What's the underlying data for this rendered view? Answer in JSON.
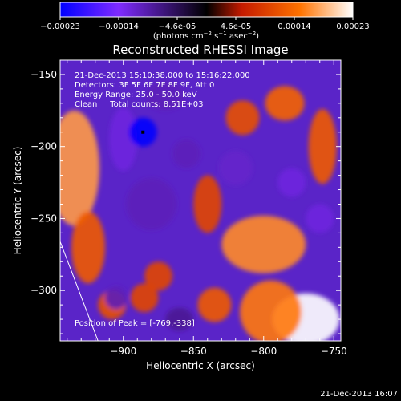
{
  "chart_data": {
    "type": "heatmap",
    "title": "Reconstructed RHESSI Image",
    "xlabel": "Heliocentric X (arcsec)",
    "ylabel": "Heliocentric Y (arcsec)",
    "xlim": [
      -945,
      -745
    ],
    "ylim": [
      -335,
      -140
    ],
    "x_ticks": [
      -900,
      -850,
      -800,
      -750
    ],
    "y_ticks": [
      -150,
      -200,
      -250,
      -300
    ],
    "colorbar": {
      "ticks": [
        "-0.00023",
        "-0.00014",
        "-4.6e-05",
        "4.6e-05",
        "0.00014",
        "0.00023"
      ],
      "label": "(photons cm^-2 s^-1 asec^-2)",
      "range": [
        -0.00023,
        0.00023
      ],
      "colors": [
        "#0000ff",
        "#7f2bff",
        "#000000",
        "#c41a00",
        "#ff7300",
        "#ffffff"
      ]
    },
    "annotations": [
      "21-Dec-2013 15:10:38.000 to 15:16:22.000",
      "Detectors: 3F 5F 6F 7F 8F 9F, Att 0",
      "Energy Range: 25.0 - 50.0 keV",
      "Clean     Total counts: 8.51E+03"
    ],
    "peak_label": "Position of Peak = [-769,-338]",
    "peak": [
      -769,
      -338
    ],
    "marker": [
      -886,
      -190
    ],
    "limb_line": [
      [
        -945,
        -266
      ],
      [
        -918,
        -335
      ]
    ],
    "blobs": [
      {
        "x": -935,
        "y": -215,
        "rx": 18,
        "ry": 40,
        "v": 0.00017
      },
      {
        "x": -925,
        "y": -270,
        "rx": 12,
        "ry": 25,
        "v": 0.00012
      },
      {
        "x": -908,
        "y": -310,
        "rx": 10,
        "ry": 10,
        "v": 0.00011
      },
      {
        "x": -885,
        "y": -305,
        "rx": 10,
        "ry": 10,
        "v": 0.0001
      },
      {
        "x": -875,
        "y": -290,
        "rx": 10,
        "ry": 10,
        "v": 0.0001
      },
      {
        "x": -840,
        "y": -240,
        "rx": 10,
        "ry": 20,
        "v": 0.0001
      },
      {
        "x": -815,
        "y": -180,
        "rx": 12,
        "ry": 12,
        "v": 0.00011
      },
      {
        "x": -785,
        "y": -170,
        "rx": 14,
        "ry": 12,
        "v": 0.00013
      },
      {
        "x": -758,
        "y": -200,
        "rx": 10,
        "ry": 26,
        "v": 0.00012
      },
      {
        "x": -800,
        "y": -268,
        "rx": 30,
        "ry": 20,
        "v": 0.00016
      },
      {
        "x": -770,
        "y": -320,
        "rx": 24,
        "ry": 18,
        "v": 0.00023
      },
      {
        "x": -795,
        "y": -315,
        "rx": 22,
        "ry": 22,
        "v": 0.00015
      },
      {
        "x": -835,
        "y": -310,
        "rx": 12,
        "ry": 12,
        "v": 0.00012
      },
      {
        "x": -900,
        "y": -195,
        "rx": 10,
        "ry": 22,
        "v": -0.00012
      },
      {
        "x": -886,
        "y": -190,
        "rx": 10,
        "ry": 10,
        "v": -0.00023
      },
      {
        "x": -880,
        "y": -240,
        "rx": 18,
        "ry": 18,
        "v": -0.0001
      },
      {
        "x": -870,
        "y": -165,
        "rx": 14,
        "ry": 10,
        "v": -0.0001
      },
      {
        "x": -855,
        "y": -205,
        "rx": 10,
        "ry": 10,
        "v": -0.0001
      },
      {
        "x": -820,
        "y": -215,
        "rx": 12,
        "ry": 12,
        "v": -0.00011
      },
      {
        "x": -780,
        "y": -225,
        "rx": 10,
        "ry": 10,
        "v": -0.00012
      },
      {
        "x": -760,
        "y": -250,
        "rx": 10,
        "ry": 10,
        "v": -0.00012
      },
      {
        "x": -905,
        "y": -305,
        "rx": 8,
        "ry": 8,
        "v": -0.0001
      },
      {
        "x": -860,
        "y": -320,
        "rx": 10,
        "ry": 8,
        "v": -8e-05
      }
    ]
  },
  "footer": {
    "timestamp": "21-Dec-2013 16:07"
  }
}
